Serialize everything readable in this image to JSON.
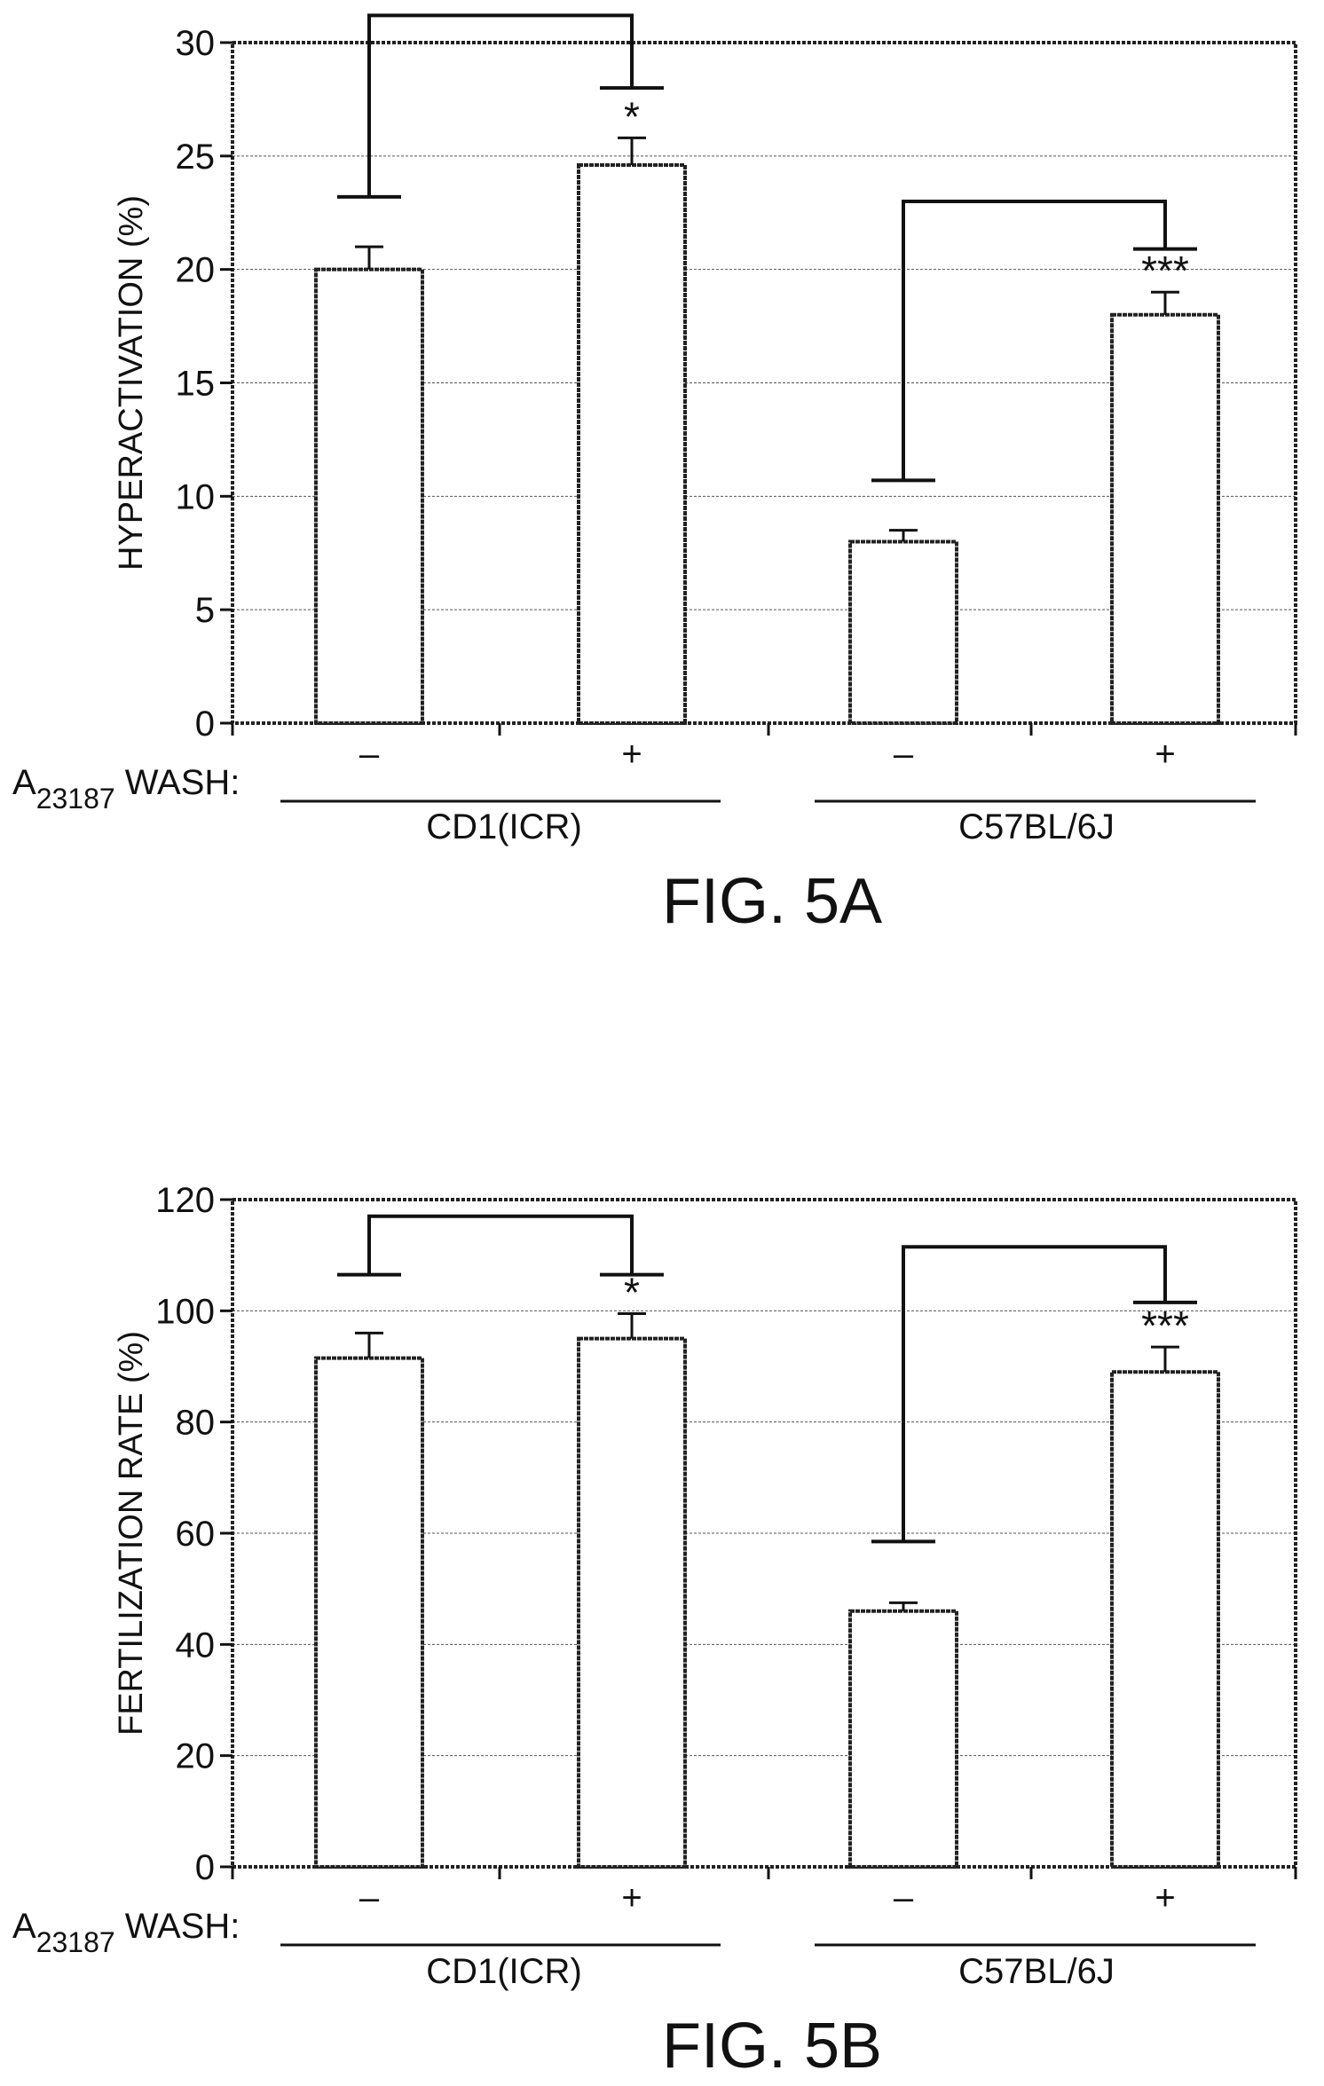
{
  "chart_data": [
    {
      "type": "bar",
      "ylabel": "HYPERACTIVATION (%)",
      "ylim": [
        0,
        30
      ],
      "yticks": [
        0,
        5,
        10,
        15,
        20,
        25,
        30
      ],
      "grid": true,
      "row_label": {
        "main": "A",
        "sub": "23187",
        "rest": " WASH:"
      },
      "categories": [
        "–",
        "+",
        "–",
        "+"
      ],
      "values": [
        20,
        24.6,
        8,
        18
      ],
      "errors": [
        1.0,
        1.2,
        0.5,
        1.0
      ],
      "groups": [
        {
          "label": "CD1(ICR)",
          "members": [
            0,
            1
          ]
        },
        {
          "label": "C57BL/6J",
          "members": [
            2,
            3
          ]
        }
      ],
      "brackets": [
        {
          "from": 0,
          "to": 1,
          "top": 31.2,
          "left_end": 23.2,
          "right_end": 28.0
        },
        {
          "from": 2,
          "to": 3,
          "top": 23.0,
          "left_end": 10.7,
          "right_end": 20.9
        }
      ],
      "significance": [
        "",
        "*",
        "",
        "***"
      ],
      "caption": "FIG. 5A"
    },
    {
      "type": "bar",
      "ylabel": "FERTILIZATION RATE (%)",
      "ylim": [
        0,
        120
      ],
      "yticks": [
        0,
        20,
        40,
        60,
        80,
        100,
        120
      ],
      "grid": true,
      "row_label": {
        "main": "A",
        "sub": "23187",
        "rest": " WASH:"
      },
      "categories": [
        "–",
        "+",
        "–",
        "+"
      ],
      "values": [
        91.5,
        95,
        46,
        89
      ],
      "errors": [
        4.5,
        4.5,
        1.5,
        4.5
      ],
      "groups": [
        {
          "label": "CD1(ICR)",
          "members": [
            0,
            1
          ]
        },
        {
          "label": "C57BL/6J",
          "members": [
            2,
            3
          ]
        }
      ],
      "brackets": [
        {
          "from": 0,
          "to": 1,
          "top": 117,
          "left_end": 106.5,
          "right_end": 106.5
        },
        {
          "from": 2,
          "to": 3,
          "top": 111.5,
          "left_end": 58.5,
          "right_end": 101.5
        }
      ],
      "significance": [
        "",
        "*",
        "",
        "***"
      ],
      "caption": "FIG. 5B"
    }
  ]
}
